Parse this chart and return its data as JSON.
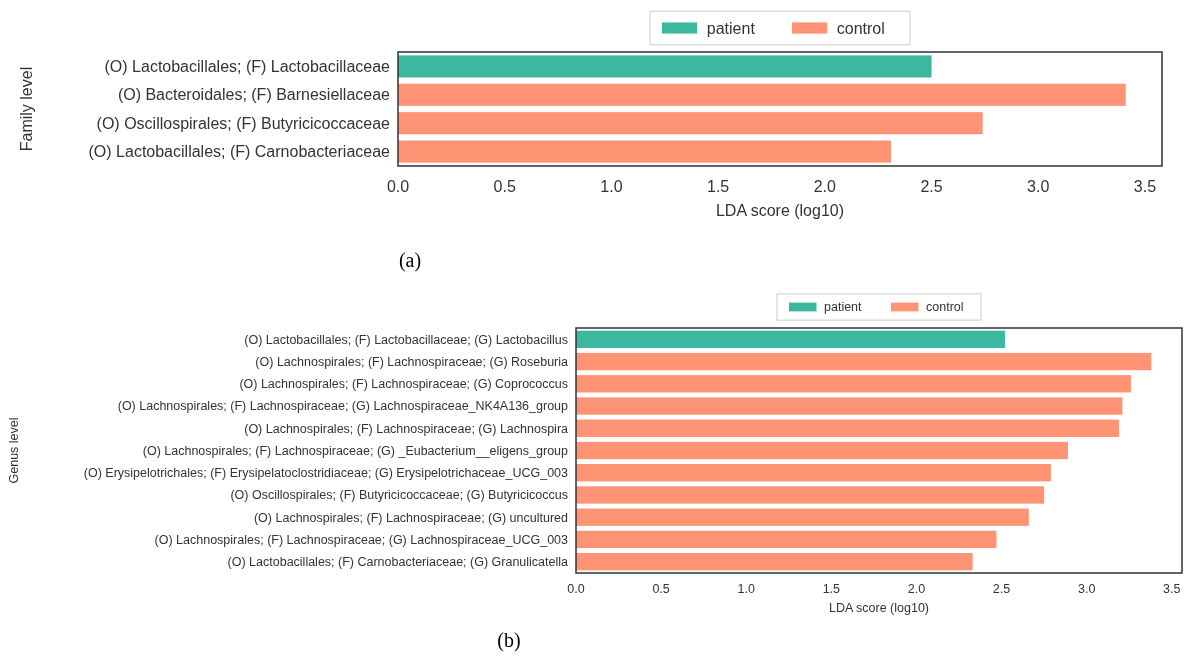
{
  "chart_data": [
    {
      "type": "bar",
      "orientation": "horizontal",
      "ylabel": "Family level",
      "xlabel": "LDA score (log10)",
      "annotations": [
        "(a)"
      ],
      "categories": [
        "(O) Lactobacillales; (F) Lactobacillaceae",
        "(O) Bacteroidales; (F) Barnesiellaceae",
        "(O) Oscillospirales; (F) Butyricicoccaceae",
        "(O) Lactobacillales; (F) Carnobacteriaceae"
      ],
      "series": [
        {
          "name": "patient",
          "color": "#3cb8a0",
          "values": [
            2.5,
            null,
            null,
            null
          ]
        },
        {
          "name": "control",
          "color": "#fe9473",
          "values": [
            null,
            3.41,
            2.74,
            2.31
          ]
        }
      ],
      "xlim": [
        0,
        3.58
      ],
      "xticks": [
        {
          "value": 0,
          "label": "0.0"
        },
        0.5,
        {
          "value": 1,
          "label": "1.0"
        },
        1.5,
        {
          "value": 2,
          "label": "2.0"
        },
        2.5,
        {
          "value": 3,
          "label": "3.0"
        },
        3.5
      ],
      "legend": "top",
      "grid": false
    },
    {
      "type": "bar",
      "orientation": "horizontal",
      "ylabel": "Genus level",
      "xlabel": "LDA score (log10)",
      "annotations": [
        "(b)"
      ],
      "categories": [
        "(O) Lactobacillales; (F) Lactobacillaceae; (G) Lactobacillus",
        "(O) Lachnospirales; (F) Lachnospiraceae; (G) Roseburia",
        "(O) Lachnospirales; (F) Lachnospiraceae; (G) Coprococcus",
        "(O) Lachnospirales; (F) Lachnospiraceae; (G) Lachnospiraceae_NK4A136_group",
        "(O) Lachnospirales; (F) Lachnospiraceae; (G) Lachnospira",
        "(O) Lachnospirales; (F) Lachnospiraceae; (G) _Eubacterium__eligens_group",
        "(O) Erysipelotrichales; (F) Erysipelatoclostridiaceae; (G) Erysipelotrichaceae_UCG_003",
        "(O) Oscillospirales; (F) Butyricicoccaceae; (G) Butyricicoccus",
        "(O) Lachnospirales; (F) Lachnospiraceae; (G) uncultured",
        "(O) Lachnospirales; (F) Lachnospiraceae; (G) Lachnospiraceae_UCG_003",
        "(O) Lactobacillales; (F) Carnobacteriaceae; (G) Granulicatella"
      ],
      "series": [
        {
          "name": "patient",
          "color": "#3cb8a0",
          "values": [
            2.52,
            null,
            null,
            null,
            null,
            null,
            null,
            null,
            null,
            null,
            null
          ]
        },
        {
          "name": "control",
          "color": "#fe9473",
          "values": [
            null,
            3.38,
            3.26,
            3.21,
            3.19,
            2.89,
            2.79,
            2.75,
            2.66,
            2.47,
            2.33
          ]
        }
      ],
      "xlim": [
        0,
        3.56
      ],
      "xticks": [
        {
          "value": 0,
          "label": "0.0"
        },
        0.5,
        {
          "value": 1,
          "label": "1.0"
        },
        1.5,
        {
          "value": 2,
          "label": "2.0"
        },
        2.5,
        {
          "value": 3,
          "label": "3.0"
        },
        3.5
      ],
      "legend": "top",
      "grid": false
    }
  ]
}
